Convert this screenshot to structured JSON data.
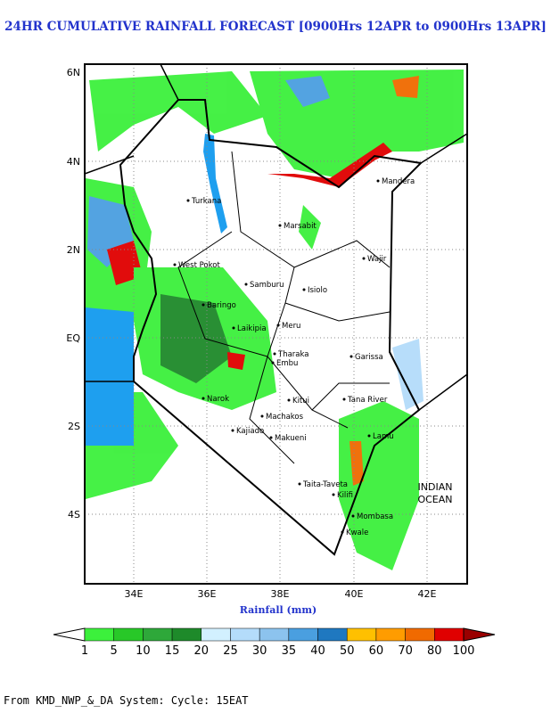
{
  "title": "24HR CUMULATIVE RAINFALL FORECAST [0900Hrs 12APR to 0900Hrs 13APR]",
  "map": {
    "lat_ticks": [
      "6N",
      "4N",
      "2N",
      "EQ",
      "2S",
      "4S"
    ],
    "lon_ticks": [
      "34E",
      "36E",
      "38E",
      "40E",
      "42E"
    ],
    "x_label": "Rainfall (mm)",
    "places": [
      "Turkana",
      "Marsabit",
      "Mandera",
      "Wajir",
      "Isiolo",
      "Samburu",
      "West Pokot",
      "Laikipia",
      "Meru",
      "Tharaka",
      "Embu",
      "Garissa",
      "Kitui",
      "Tana River",
      "Machakos",
      "Kajiado",
      "Makueni",
      "Lamu",
      "Taita-Taveta",
      "Kilifi",
      "Mombasa",
      "Kwale",
      "Narok",
      "Baringo"
    ],
    "ocean": [
      "INDIAN",
      "OCEAN"
    ]
  },
  "colorbar": {
    "levels": [
      1,
      5,
      10,
      15,
      20,
      25,
      30,
      35,
      40,
      50,
      60,
      70,
      80,
      100
    ],
    "colors": [
      "#ffffff",
      "#3cf03c",
      "#28c828",
      "#2ea83a",
      "#1e8a2a",
      "#d2f0ff",
      "#b4dcfa",
      "#8cc3ee",
      "#4a9fe0",
      "#1f78c0",
      "#ffc000",
      "#ff9c00",
      "#f06a00",
      "#e00000",
      "#9a0000"
    ]
  },
  "footer": "From KMD_NWP_&_DA System: Cycle: 15EAT"
}
